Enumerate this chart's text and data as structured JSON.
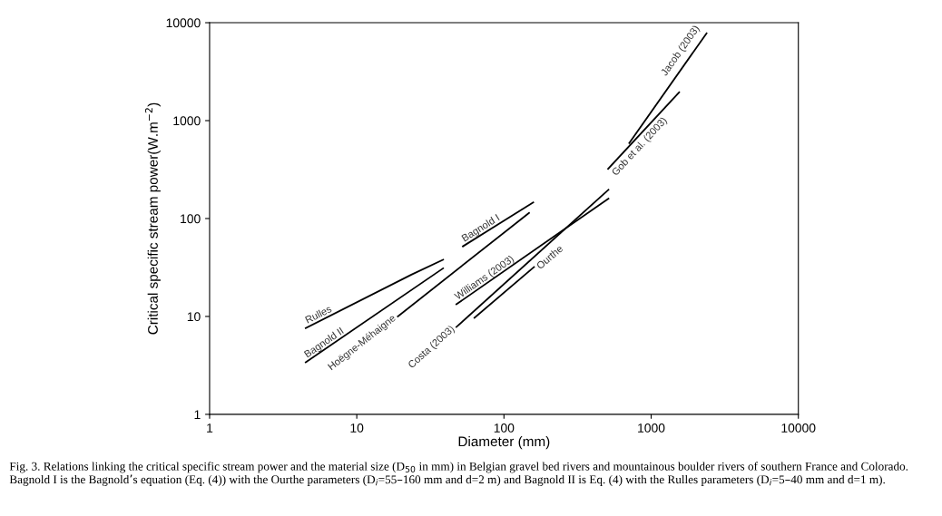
{
  "chart_data": {
    "type": "line",
    "xlabel": "Diameter (mm)",
    "ylabel": "Critical specific stream power(W.m$^{−2}$)",
    "log": "xy",
    "xlim": [
      1,
      10000
    ],
    "ylim": [
      1,
      10000
    ],
    "xticks": [
      1,
      10,
      100,
      1000,
      10000
    ],
    "yticks": [
      1,
      10,
      100,
      1000,
      10000
    ],
    "grid": false,
    "legend": false,
    "marker": "none",
    "line_style": "solid",
    "series": [
      {
        "name": "Rulles",
        "color": "#000000",
        "x": [
          4.5,
          23.5,
          38.6
        ],
        "values": [
          7.6,
          26.7,
          38
        ]
      },
      {
        "name": "Bagnold II",
        "color": "#000000",
        "x": [
          4.5,
          38.6
        ],
        "values": [
          3.4,
          31
        ]
      },
      {
        "name": "Hoëgne-Méhaigne",
        "color": "#000000",
        "x": [
          19,
          148
        ],
        "values": [
          10,
          114
        ]
      },
      {
        "name": "Bagnold I",
        "color": "#000000",
        "x": [
          52.6,
          158
        ],
        "values": [
          52,
          146
        ]
      },
      {
        "name": "Williams (2003)",
        "color": "#000000",
        "x": [
          47.5,
          513
        ],
        "values": [
          13.3,
          160
        ]
      },
      {
        "name": "Costa (2003)",
        "color": "#000000",
        "x": [
          47.5,
          513
        ],
        "values": [
          7.8,
          197
        ]
      },
      {
        "name": "Ourthe",
        "color": "#000000",
        "x": [
          63,
          160
        ],
        "values": [
          9.7,
          32
        ]
      },
      {
        "name": "Gob et al. (2003)",
        "color": "#000000",
        "x": [
          510,
          1550
        ],
        "values": [
          322,
          1950
        ]
      },
      {
        "name": "Jacob (2003)",
        "color": "#000000",
        "x": [
          710,
          2380
        ],
        "values": [
          590,
          7800
        ]
      }
    ],
    "annotations": [
      "Fig. 3. Relations linking the critical specific stream power and the material size (D$_{50}$ in mm) in Belgian gravel bed rivers and mountainous boulder rivers of southern France and Colorado. Bagnold I is the Bagnold’s equation (Eq. (4)) with the Ourthe parameters (D$_{i}$=55–160 mm and d=2 m) and Bagnold II is Eq. (4) with the Rulles parameters (D$_{i}$=5–40 mm and d=1 m)."
    ]
  }
}
